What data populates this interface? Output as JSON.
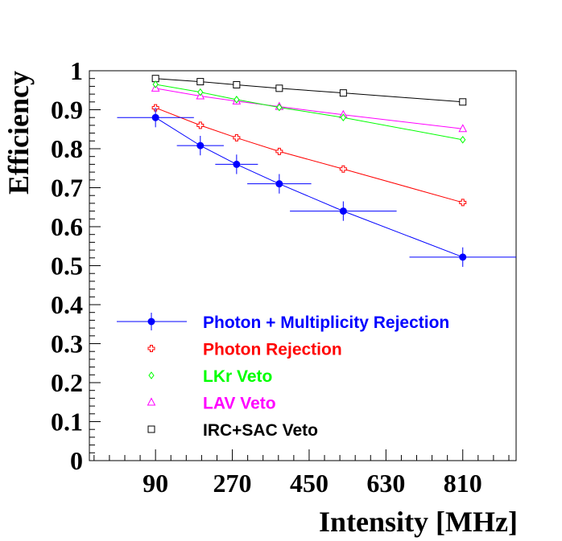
{
  "chart_data": {
    "type": "scatter",
    "xlabel": "Intensity [MHz]",
    "ylabel": "Efficiency",
    "xlim": [
      -65,
      935
    ],
    "ylim": [
      0,
      1
    ],
    "x_ticks": [
      "90",
      "270",
      "450",
      "630",
      "810"
    ],
    "y_ticks": [
      "0",
      "0.1",
      "0.2",
      "0.3",
      "0.4",
      "0.5",
      "0.6",
      "0.7",
      "0.8",
      "0.9",
      "1"
    ],
    "series": [
      {
        "name": "Photon + Multiplicity Rejection",
        "color": "#0000ff",
        "marker": "filled-circle",
        "connected": true,
        "x": [
          90,
          195,
          280,
          380,
          530,
          810
        ],
        "y": [
          0.88,
          0.808,
          0.76,
          0.71,
          0.64,
          0.522
        ],
        "xerr": [
          90,
          55,
          50,
          75,
          125,
          125
        ],
        "yerr": [
          0.025,
          0.025,
          0.025,
          0.025,
          0.025,
          0.025
        ]
      },
      {
        "name": "Photon Rejection",
        "color": "#ff0000",
        "marker": "open-cross",
        "connected": true,
        "x": [
          90,
          195,
          280,
          380,
          530,
          810
        ],
        "y": [
          0.905,
          0.86,
          0.828,
          0.793,
          0.748,
          0.662
        ]
      },
      {
        "name": "LKr Veto",
        "color": "#00ff00",
        "marker": "open-diamond",
        "connected": true,
        "x": [
          90,
          195,
          280,
          380,
          530,
          810
        ],
        "y": [
          0.965,
          0.945,
          0.926,
          0.906,
          0.88,
          0.823
        ]
      },
      {
        "name": "LAV Veto",
        "color": "#ff00ff",
        "marker": "open-triangle",
        "connected": true,
        "x": [
          90,
          195,
          280,
          380,
          530,
          810
        ],
        "y": [
          0.955,
          0.935,
          0.922,
          0.908,
          0.887,
          0.851
        ]
      },
      {
        "name": "IRC+SAC Veto",
        "color": "#000000",
        "marker": "open-square",
        "connected": true,
        "x": [
          90,
          195,
          280,
          380,
          530,
          810
        ],
        "y": [
          0.98,
          0.972,
          0.964,
          0.955,
          0.943,
          0.92
        ]
      }
    ]
  }
}
